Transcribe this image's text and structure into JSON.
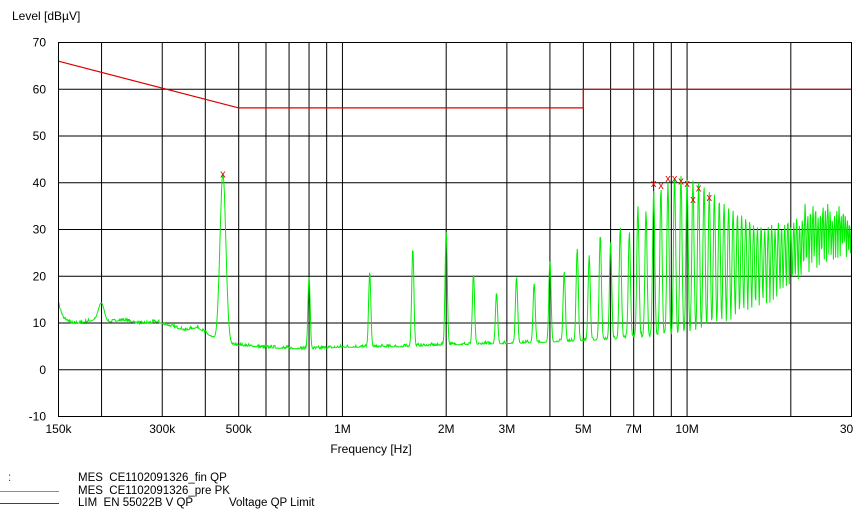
{
  "chart_data": {
    "type": "line",
    "title": "",
    "ylabel": "Level [dBµV]",
    "xlabel": "Frequency [Hz]",
    "x_scale": "log",
    "xlim_hz": [
      150000,
      30000000
    ],
    "ylim": [
      -10,
      70
    ],
    "grid": true,
    "y_ticks": [
      -10,
      0,
      10,
      20,
      30,
      40,
      50,
      60,
      70
    ],
    "x_ticks": [
      {
        "label": "150k",
        "hz": 150000
      },
      {
        "label": "300k",
        "hz": 300000
      },
      {
        "label": "500k",
        "hz": 500000
      },
      {
        "label": "1M",
        "hz": 1000000
      },
      {
        "label": "2M",
        "hz": 2000000
      },
      {
        "label": "3M",
        "hz": 3000000
      },
      {
        "label": "5M",
        "hz": 5000000
      },
      {
        "label": "7M",
        "hz": 7000000
      },
      {
        "label": "10M",
        "hz": 10000000
      },
      {
        "label": "30M",
        "hz": 30000000
      }
    ],
    "series": [
      {
        "name": "MES  CE1102091326_pre PK",
        "color": "#00ee00",
        "baseline": [
          [
            150000,
            14
          ],
          [
            155000,
            11
          ],
          [
            165000,
            9.8
          ],
          [
            180000,
            10.2
          ],
          [
            195000,
            10.8
          ],
          [
            205000,
            10
          ],
          [
            230000,
            10.6
          ],
          [
            260000,
            9.8
          ],
          [
            290000,
            10.2
          ],
          [
            320000,
            9.2
          ],
          [
            350000,
            8.4
          ],
          [
            380000,
            9
          ],
          [
            410000,
            7.4
          ],
          [
            430000,
            6.2
          ],
          [
            460000,
            5.4
          ],
          [
            500000,
            5.2
          ],
          [
            600000,
            4.7
          ],
          [
            800000,
            4.4
          ],
          [
            1000000,
            4.8
          ],
          [
            1500000,
            4.9
          ],
          [
            2000000,
            5.3
          ],
          [
            3000000,
            5.6
          ],
          [
            4000000,
            5.9
          ],
          [
            5000000,
            6.2
          ],
          [
            6000000,
            6.5
          ],
          [
            7000000,
            6.9
          ],
          [
            8000000,
            7.1
          ],
          [
            10000000,
            7.2
          ],
          [
            15000000,
            7.3
          ],
          [
            20000000,
            7.4
          ],
          [
            30000000,
            7.4
          ]
        ],
        "peaks": [
          [
            200000,
            14.3
          ],
          [
            450000,
            42
          ],
          [
            800000,
            20
          ],
          [
            1200000,
            21
          ],
          [
            1600000,
            26
          ],
          [
            2000000,
            30
          ],
          [
            2400000,
            20.5
          ],
          [
            2800000,
            16.5
          ],
          [
            3200000,
            20
          ],
          [
            3600000,
            18.5
          ],
          [
            4000000,
            23.5
          ],
          [
            4400000,
            21
          ],
          [
            4800000,
            26
          ],
          [
            5200000,
            24.5
          ],
          [
            5600000,
            29
          ],
          [
            6000000,
            27.5
          ],
          [
            6400000,
            30.5
          ],
          [
            6800000,
            29.5
          ],
          [
            7200000,
            35
          ],
          [
            7600000,
            34
          ],
          [
            8000000,
            38.5
          ],
          [
            8400000,
            39
          ],
          [
            8800000,
            40
          ],
          [
            9200000,
            41.5
          ],
          [
            9600000,
            41.5
          ],
          [
            10000000,
            41
          ],
          [
            10400000,
            40.5
          ],
          [
            10800000,
            40
          ],
          [
            11200000,
            39.5
          ],
          [
            11600000,
            38
          ],
          [
            12000000,
            37.5
          ],
          [
            12400000,
            36.5
          ],
          [
            12800000,
            35.5
          ],
          [
            13200000,
            34.5
          ],
          [
            13600000,
            34
          ],
          [
            14000000,
            33.5
          ],
          [
            14400000,
            33
          ],
          [
            14800000,
            32.5
          ],
          [
            15200000,
            32
          ],
          [
            15600000,
            31
          ],
          [
            16000000,
            30.5
          ],
          [
            16400000,
            31
          ],
          [
            16800000,
            30
          ],
          [
            17200000,
            30.5
          ],
          [
            17600000,
            31
          ],
          [
            18000000,
            30
          ],
          [
            18400000,
            31.5
          ],
          [
            18800000,
            30.5
          ],
          [
            19200000,
            31
          ],
          [
            19600000,
            32
          ],
          [
            20000000,
            30.5
          ],
          [
            20400000,
            31.5
          ],
          [
            20800000,
            32.5
          ],
          [
            21200000,
            31
          ],
          [
            21600000,
            32
          ],
          [
            22000000,
            35.5
          ],
          [
            22400000,
            33
          ],
          [
            22800000,
            34
          ],
          [
            23200000,
            35
          ],
          [
            23600000,
            34.5
          ],
          [
            24000000,
            32.5
          ],
          [
            24400000,
            33.5
          ],
          [
            24800000,
            35
          ],
          [
            25200000,
            34
          ],
          [
            25600000,
            35.5
          ],
          [
            26000000,
            34
          ],
          [
            26400000,
            32
          ],
          [
            26800000,
            33
          ],
          [
            27200000,
            34
          ],
          [
            27600000,
            35
          ],
          [
            28000000,
            33
          ],
          [
            28400000,
            34
          ],
          [
            28800000,
            33
          ],
          [
            29200000,
            32
          ],
          [
            29600000,
            31.5
          ],
          [
            30000000,
            31
          ]
        ]
      },
      {
        "name": "MES  CE1102091326_fin QP",
        "color": "#dd0000",
        "marker": "x",
        "points": [
          [
            450000,
            42
          ],
          [
            8000000,
            40
          ],
          [
            8400000,
            39.5
          ],
          [
            8800000,
            41
          ],
          [
            9200000,
            41
          ],
          [
            9600000,
            40.5
          ],
          [
            10000000,
            40
          ],
          [
            10400000,
            36.5
          ],
          [
            10800000,
            39
          ],
          [
            11600000,
            37
          ]
        ]
      },
      {
        "name": "LIM  EN 55022B V QP",
        "description": "Voltage QP Limit",
        "color": "#dd0000",
        "points": [
          [
            150000,
            66
          ],
          [
            500000,
            56
          ],
          [
            5000000,
            56
          ],
          [
            5000000,
            60
          ],
          [
            30000000,
            60
          ]
        ]
      }
    ]
  }
}
